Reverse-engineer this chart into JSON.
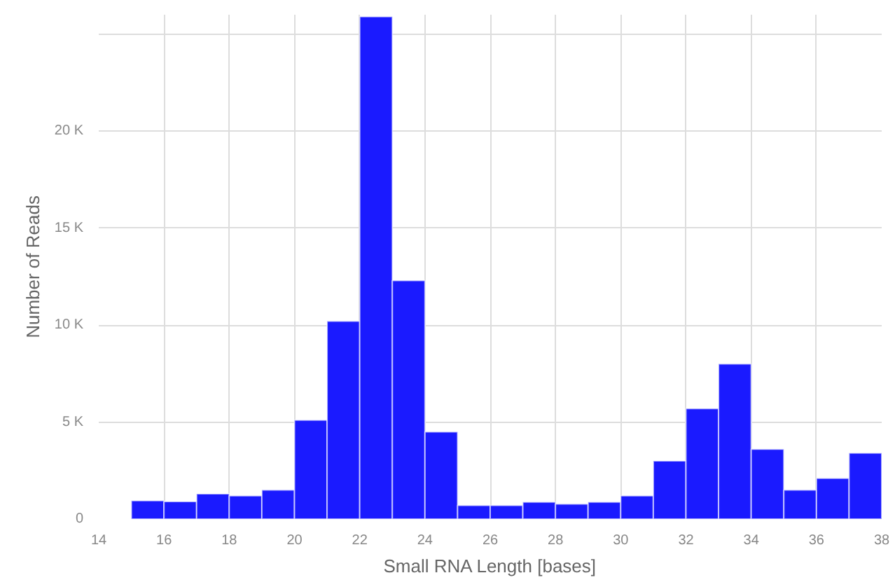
{
  "chart_data": {
    "type": "histogram",
    "xlabel": "Small RNA Length [bases]",
    "ylabel": "Number of Reads",
    "bins": [
      15,
      16,
      17,
      18,
      19,
      20,
      21,
      22,
      23,
      24,
      25,
      26,
      27,
      28,
      29,
      30,
      31,
      32,
      33,
      34,
      35,
      36,
      37,
      38
    ],
    "values": [
      950,
      900,
      1300,
      1200,
      1500,
      5100,
      10200,
      25900,
      12300,
      4500,
      700,
      700,
      880,
      780,
      880,
      1200,
      3000,
      5700,
      8000,
      3600,
      1500,
      2100,
      3400
    ],
    "color": "#1a1aff",
    "xlim": [
      14,
      38
    ],
    "xticks": [
      14,
      16,
      18,
      20,
      22,
      24,
      26,
      28,
      30,
      32,
      34,
      36,
      38
    ],
    "ylim": [
      0,
      26000
    ],
    "yticks": [
      0,
      {
        "value": 5000,
        "label": "5 K"
      },
      {
        "value": 10000,
        "label": "10 K"
      },
      {
        "value": 15000,
        "label": "15 K"
      },
      {
        "value": 20000,
        "label": "20 K"
      },
      {
        "value": 25000,
        "label": null
      }
    ],
    "grid": true
  }
}
